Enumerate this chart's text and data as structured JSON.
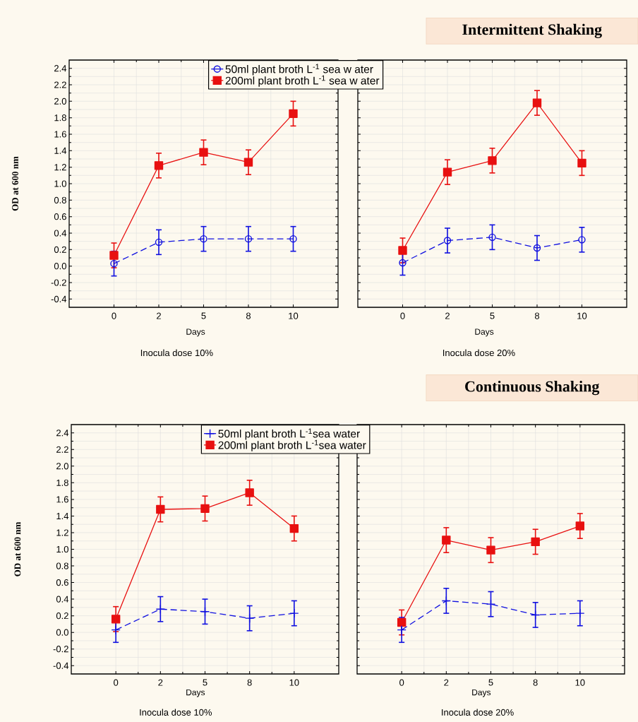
{
  "chart_data": [
    {
      "type": "line",
      "categories": [
        "0",
        "2",
        "5",
        "8",
        "10"
      ],
      "xlabel": "Days",
      "ylabel": "OD at 600 nm",
      "annotations": [
        "Inocula dose  10%"
      ],
      "ylim": [
        -0.5,
        2.5
      ],
      "yticks": [
        {
          "value": -0.4,
          "label": "-0.4"
        },
        {
          "value": -0.2,
          "label": "-0.2"
        },
        {
          "value": 0,
          "label": "0.0"
        },
        {
          "value": 0.2,
          "label": "0.2"
        },
        {
          "value": 0.4,
          "label": "0.4"
        },
        {
          "value": 0.6,
          "label": "0.6"
        },
        {
          "value": 0.8,
          "label": "0.8"
        },
        {
          "value": 1.0,
          "label": "1.0"
        },
        {
          "value": 1.2,
          "label": "1.2"
        },
        {
          "value": 1.4,
          "label": "1.4"
        },
        {
          "value": 1.6,
          "label": "1.6"
        },
        {
          "value": 1.8,
          "label": "1.8"
        },
        {
          "value": 2.0,
          "label": "2.0"
        },
        {
          "value": 2.2,
          "label": "2.2"
        },
        {
          "value": 2.4,
          "label": "2.4"
        }
      ],
      "grid": true,
      "legend": "top right",
      "series": [
        {
          "name": "50ml  plant broth L$^{-1}$ sea w ater",
          "color": "#1010e0",
          "marker": "circle",
          "line_style": "dashed",
          "values": [
            0.03,
            0.29,
            0.33,
            0.33,
            0.33
          ],
          "errors": [
            0.15,
            0.15,
            0.15,
            0.15,
            0.15
          ]
        },
        {
          "name": "200ml  plant broth L$^{-1}$ sea w ater",
          "color": "#e81010",
          "marker": "square",
          "line_style": "solid",
          "values": [
            0.13,
            1.22,
            1.38,
            1.26,
            1.85
          ],
          "errors": [
            0.15,
            0.15,
            0.15,
            0.15,
            0.15
          ]
        }
      ]
    },
    {
      "type": "line",
      "title": "Intermittent Shaking",
      "categories": [
        "0",
        "2",
        "5",
        "8",
        "10"
      ],
      "xlabel": "Days",
      "annotations": [
        "Inocula dose 20%"
      ],
      "ylim": [
        -0.5,
        2.5
      ],
      "yticks": [
        {
          "value": -0.4,
          "label": null
        },
        {
          "value": -0.2,
          "label": null
        },
        {
          "value": 0,
          "label": null
        },
        {
          "value": 0.2,
          "label": null
        },
        {
          "value": 0.4,
          "label": null
        },
        {
          "value": 0.6,
          "label": null
        },
        {
          "value": 0.8,
          "label": null
        },
        {
          "value": 1.0,
          "label": null
        },
        {
          "value": 1.2,
          "label": null
        },
        {
          "value": 1.4,
          "label": null
        },
        {
          "value": 1.6,
          "label": null
        },
        {
          "value": 1.8,
          "label": null
        },
        {
          "value": 2.0,
          "label": null
        },
        {
          "value": 2.2,
          "label": null
        },
        {
          "value": 2.4,
          "label": null
        }
      ],
      "grid": true,
      "tick_labels": "x",
      "series": [
        {
          "color": "#1010e0",
          "marker": "circle",
          "line_style": "dashed",
          "values": [
            0.04,
            0.31,
            0.35,
            0.22,
            0.32
          ],
          "errors": [
            0.15,
            0.15,
            0.15,
            0.15,
            0.15
          ]
        },
        {
          "color": "#e81010",
          "marker": "square",
          "line_style": "solid",
          "values": [
            0.19,
            1.14,
            1.28,
            1.98,
            1.25
          ],
          "errors": [
            0.15,
            0.15,
            0.15,
            0.15,
            0.15
          ]
        }
      ]
    },
    {
      "type": "line",
      "categories": [
        "0",
        "2",
        "5",
        "8",
        "10"
      ],
      "xlabel": "Days",
      "ylabel": "OD at 600 nm",
      "annotations": [
        "Inocula dose 10%"
      ],
      "ylim": [
        -0.5,
        2.5
      ],
      "yticks": [
        {
          "value": -0.4,
          "label": "-0.4"
        },
        {
          "value": -0.2,
          "label": "-0.2"
        },
        {
          "value": 0,
          "label": "0.0"
        },
        {
          "value": 0.2,
          "label": "0.2"
        },
        {
          "value": 0.4,
          "label": "0.4"
        },
        {
          "value": 0.6,
          "label": "0.6"
        },
        {
          "value": 0.8,
          "label": "0.8"
        },
        {
          "value": 1.0,
          "label": "1.0"
        },
        {
          "value": 1.2,
          "label": "1.2"
        },
        {
          "value": 1.4,
          "label": "1.4"
        },
        {
          "value": 1.6,
          "label": "1.6"
        },
        {
          "value": 1.8,
          "label": "1.8"
        },
        {
          "value": 2.0,
          "label": "2.0"
        },
        {
          "value": 2.2,
          "label": "2.2"
        },
        {
          "value": 2.4,
          "label": "2.4"
        }
      ],
      "grid": true,
      "legend": "top right",
      "series": [
        {
          "name": "50ml  plant broth L$^{-1}$sea water",
          "color": "#1010e0",
          "marker": "cross",
          "line_style": "dashed",
          "values": [
            0.03,
            0.28,
            0.25,
            0.17,
            0.23
          ],
          "errors": [
            0.15,
            0.15,
            0.15,
            0.15,
            0.15
          ]
        },
        {
          "name": "200ml  plant broth L$^{-1}$sea water",
          "color": "#e81010",
          "marker": "square",
          "line_style": "solid",
          "values": [
            0.16,
            1.48,
            1.49,
            1.68,
            1.25
          ],
          "errors": [
            0.15,
            0.15,
            0.15,
            0.15,
            0.15
          ]
        }
      ]
    },
    {
      "type": "line",
      "title": "Continuous Shaking",
      "categories": [
        "0",
        "2",
        "5",
        "8",
        "10"
      ],
      "xlabel": "Days",
      "annotations": [
        "Inocula dose 20%"
      ],
      "ylim": [
        -0.5,
        2.5
      ],
      "yticks": [
        {
          "value": -0.4,
          "label": null
        },
        {
          "value": -0.2,
          "label": null
        },
        {
          "value": 0,
          "label": null
        },
        {
          "value": 0.2,
          "label": null
        },
        {
          "value": 0.4,
          "label": null
        },
        {
          "value": 0.6,
          "label": null
        },
        {
          "value": 0.8,
          "label": null
        },
        {
          "value": 1.0,
          "label": null
        },
        {
          "value": 1.2,
          "label": null
        },
        {
          "value": 1.4,
          "label": null
        },
        {
          "value": 1.6,
          "label": null
        },
        {
          "value": 1.8,
          "label": null
        },
        {
          "value": 2.0,
          "label": null
        },
        {
          "value": 2.2,
          "label": null
        },
        {
          "value": 2.4,
          "label": null
        }
      ],
      "grid": true,
      "tick_labels": "x",
      "series": [
        {
          "color": "#1010e0",
          "marker": "cross",
          "line_style": "dashed",
          "values": [
            0.03,
            0.38,
            0.34,
            0.21,
            0.23
          ],
          "errors": [
            0.15,
            0.15,
            0.15,
            0.15,
            0.15
          ]
        },
        {
          "color": "#e81010",
          "marker": "square",
          "line_style": "solid",
          "values": [
            0.12,
            1.11,
            0.99,
            1.09,
            1.28
          ],
          "errors": [
            0.15,
            0.15,
            0.15,
            0.15,
            0.15
          ]
        }
      ]
    }
  ]
}
